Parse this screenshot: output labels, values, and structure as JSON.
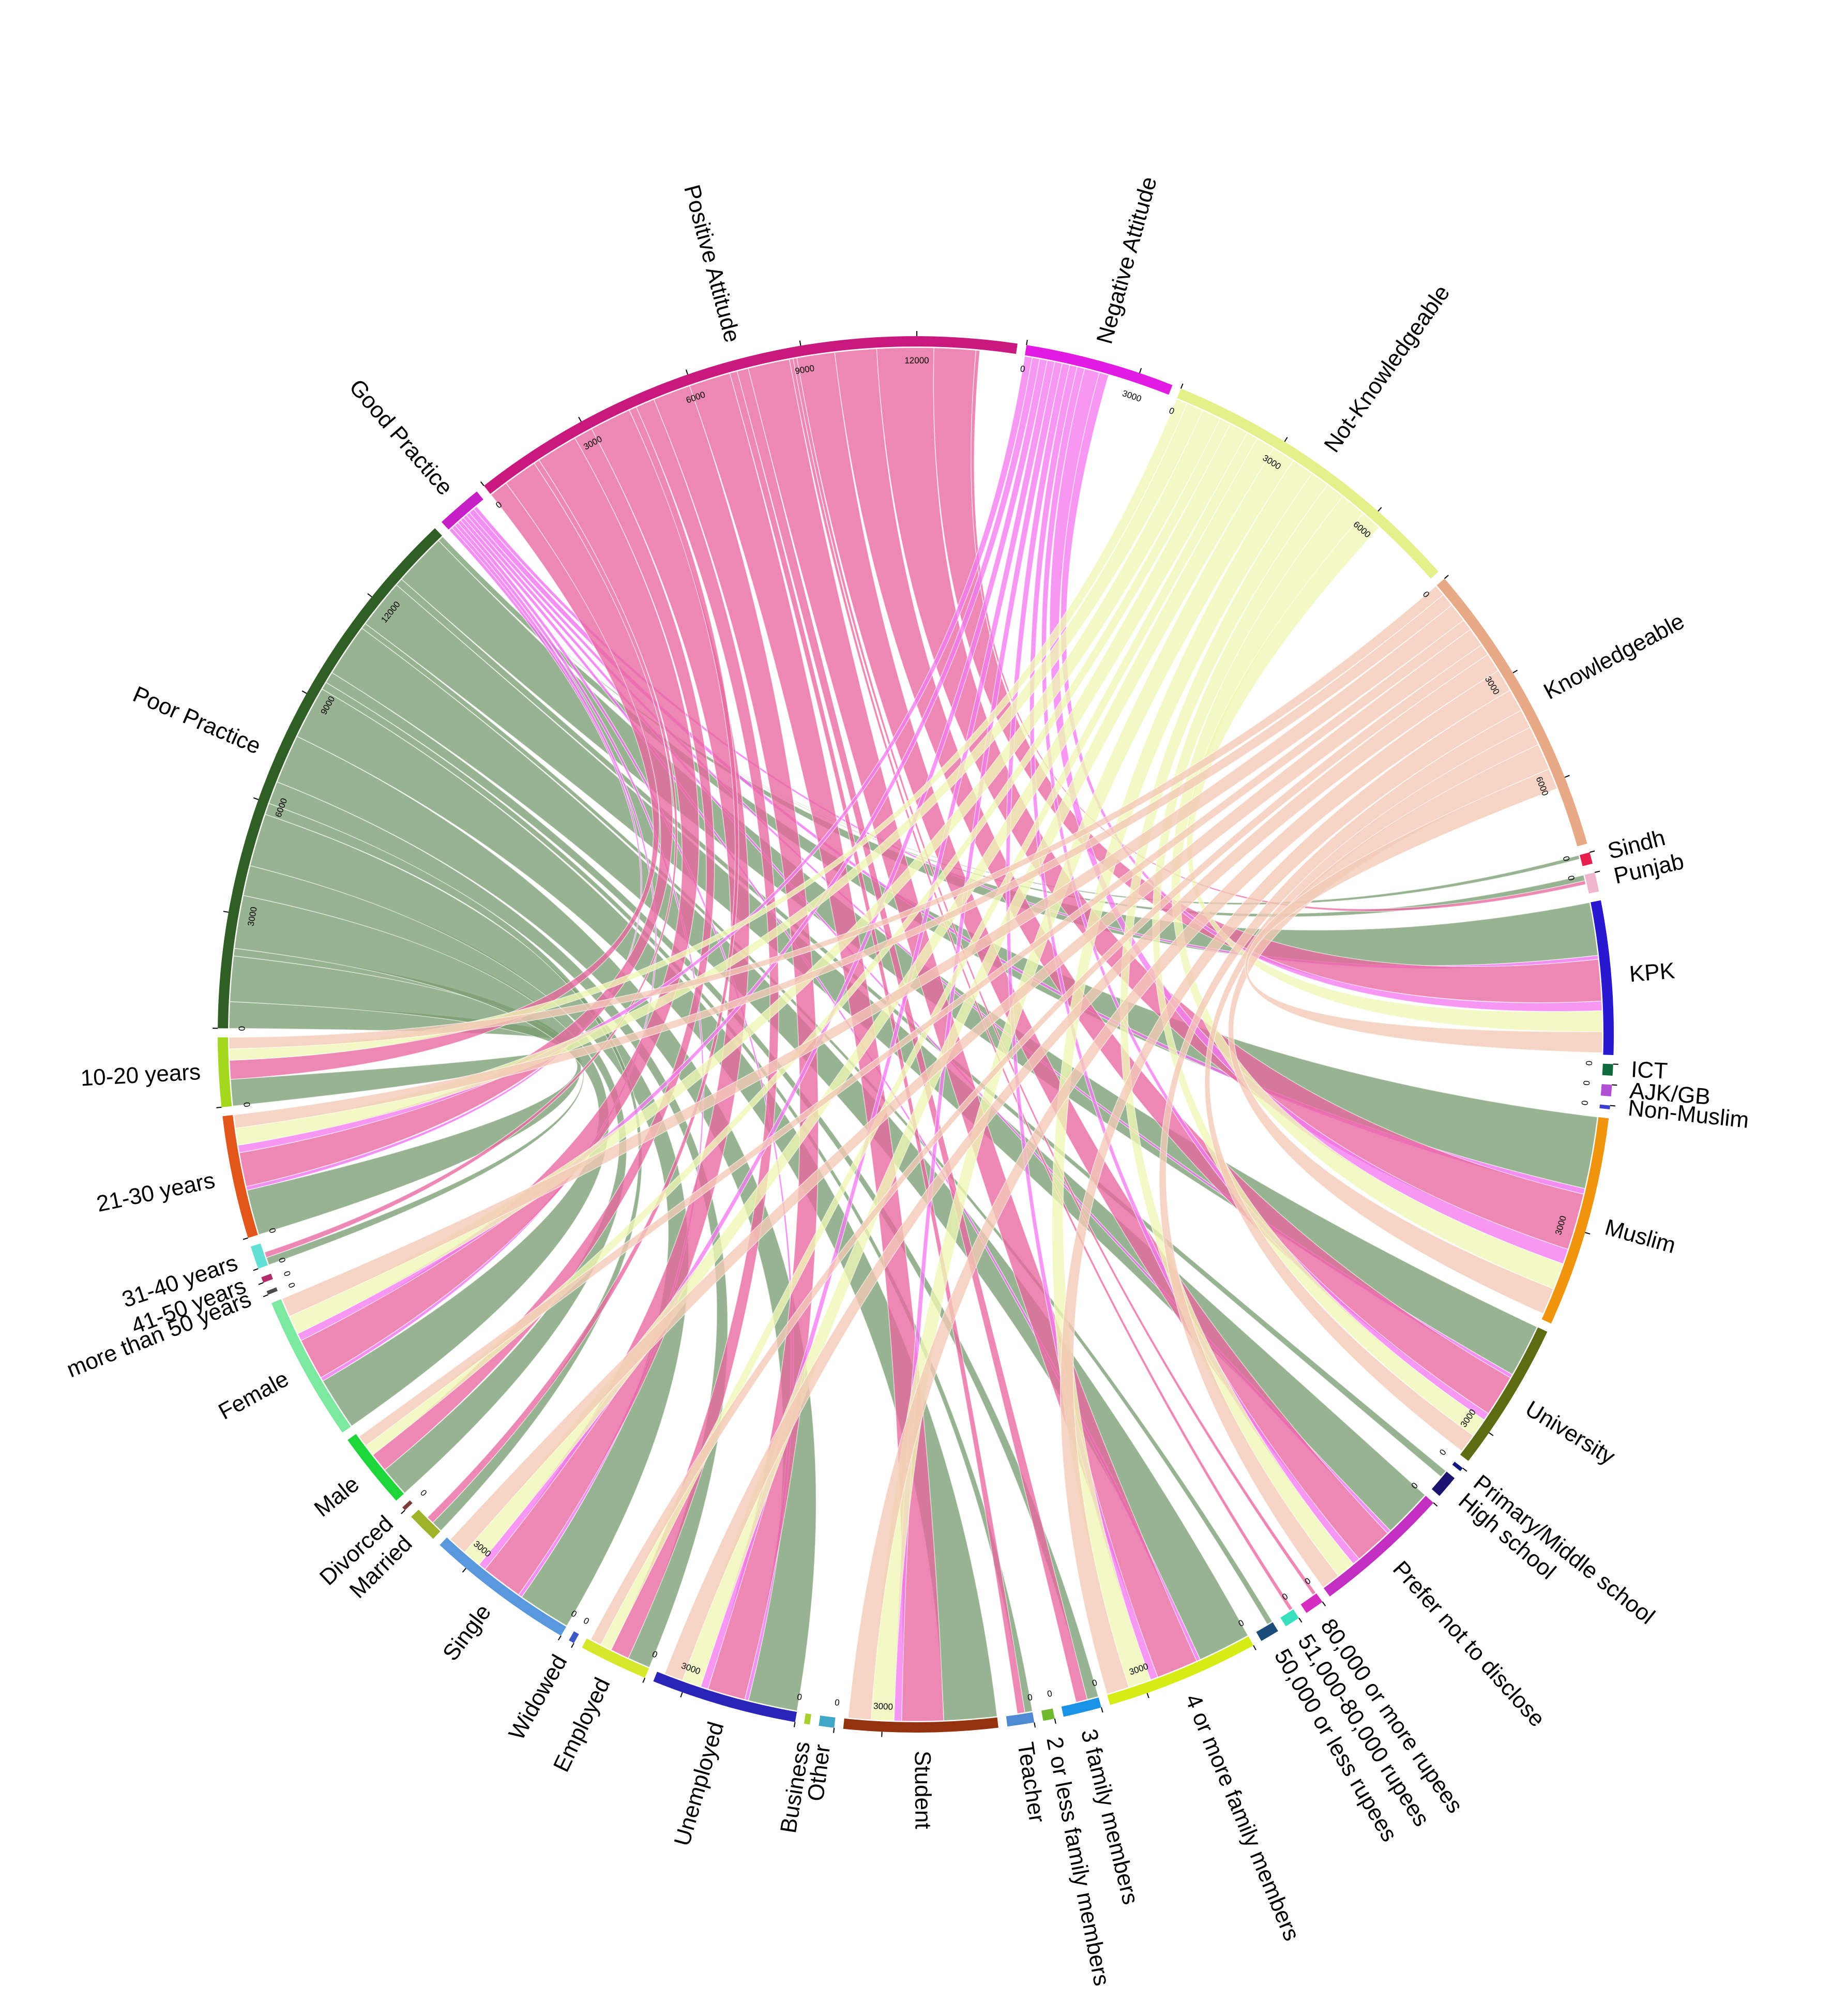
{
  "chart_data": {
    "type": "chord",
    "segments": [
      {
        "id": "poor-practice",
        "label": "Poor Practice",
        "color": "#2f5f24",
        "value": 14400,
        "ticks": [
          0,
          3000,
          6000,
          9000,
          12000
        ]
      },
      {
        "id": "good-practice",
        "label": "Good Practice",
        "color": "#c61fc6",
        "value": 1200,
        "ticks": []
      },
      {
        "id": "positive-attitude",
        "label": "Positive Attitude",
        "color": "#c9197f",
        "value": 14600,
        "ticks": [
          0,
          3000,
          6000,
          9000,
          12000
        ]
      },
      {
        "id": "negative-attitude",
        "label": "Negative Attitude",
        "color": "#e21be3",
        "value": 3900,
        "ticks": [
          0,
          3000
        ]
      },
      {
        "id": "not-knowledgeable",
        "label": "Not-Knowledgeable",
        "color": "#e6f08a",
        "value": 8200,
        "ticks": [
          0,
          3000,
          6000
        ]
      },
      {
        "id": "knowledgeable",
        "label": "Knowledgeable",
        "color": "#e8aa86",
        "value": 7800,
        "ticks": [
          0,
          3000,
          6000
        ]
      },
      {
        "id": "sindh",
        "label": "Sindh",
        "color": "#e8204f",
        "value": 300,
        "ticks": [
          0
        ]
      },
      {
        "id": "punjab",
        "label": "Punjab",
        "color": "#f0b6cd",
        "value": 500,
        "ticks": [
          0
        ]
      },
      {
        "id": "kpk",
        "label": "KPK",
        "color": "#2a17d0",
        "value": 4000,
        "ticks": []
      },
      {
        "id": "ict",
        "label": "ICT",
        "color": "#0f6a3e",
        "value": 300,
        "ticks": [
          0
        ]
      },
      {
        "id": "ajk-gb",
        "label": "AJK/GB",
        "color": "#b14fd6",
        "value": 300,
        "ticks": [
          0
        ]
      },
      {
        "id": "non-muslim",
        "label": "Non-Muslim",
        "color": "#3a3fd0",
        "value": 100,
        "ticks": [
          0
        ]
      },
      {
        "id": "muslim",
        "label": "Muslim",
        "color": "#f0940e",
        "value": 5500,
        "ticks": [
          3000
        ]
      },
      {
        "id": "university",
        "label": "University",
        "color": "#5d6b12",
        "value": 3900,
        "ticks": [
          3000
        ]
      },
      {
        "id": "primary-middle-school",
        "label": "Primary/Middle school",
        "color": "#0f1680",
        "value": 100,
        "ticks": [
          0
        ]
      },
      {
        "id": "high-school",
        "label": "High school",
        "color": "#1a1470",
        "value": 600,
        "ticks": []
      },
      {
        "id": "prefer-not-to-disclose",
        "label": "Prefer not to disclose",
        "color": "#c32fc0",
        "value": 3600,
        "ticks": [
          0
        ]
      },
      {
        "id": "80000-or-more-rupees",
        "label": "80,000 or more rupees",
        "color": "#d42cc0",
        "value": 500,
        "ticks": [
          0
        ]
      },
      {
        "id": "51000-80000-rupees",
        "label": "51,000-80,000 rupees",
        "color": "#39e0c0",
        "value": 400,
        "ticks": [
          0
        ]
      },
      {
        "id": "50000-or-less-rupees",
        "label": "50,000 or less rupees",
        "color": "#1d4b7a",
        "value": 500,
        "ticks": []
      },
      {
        "id": "4-or-more-family-members",
        "label": "4 or more family members",
        "color": "#d7eb14",
        "value": 4000,
        "ticks": [
          0,
          3000
        ]
      },
      {
        "id": "3-family-members",
        "label": "3 family members",
        "color": "#1a92e6",
        "value": 1000,
        "ticks": [
          0
        ]
      },
      {
        "id": "2-or-less-family-members",
        "label": "2 or less family members",
        "color": "#6fba2c",
        "value": 300,
        "ticks": [
          0
        ]
      },
      {
        "id": "teacher",
        "label": "Teacher",
        "color": "#4f8bd4",
        "value": 700,
        "ticks": [
          0
        ]
      },
      {
        "id": "student",
        "label": "Student",
        "color": "#94310f",
        "value": 4000,
        "ticks": [
          3000
        ]
      },
      {
        "id": "other",
        "label": "Other",
        "color": "#3fa7c7",
        "value": 400,
        "ticks": [
          0
        ]
      },
      {
        "id": "business",
        "label": "Business",
        "color": "#a7d12a",
        "value": 150,
        "ticks": []
      },
      {
        "id": "unemployed",
        "label": "Unemployed",
        "color": "#2a24b8",
        "value": 3800,
        "ticks": [
          0,
          3000
        ]
      },
      {
        "id": "employed",
        "label": "Employed",
        "color": "#d6e82b",
        "value": 1800,
        "ticks": [
          0
        ]
      },
      {
        "id": "widowed",
        "label": "Widowed",
        "color": "#3d59c2",
        "value": 150,
        "ticks": [
          0
        ]
      },
      {
        "id": "single",
        "label": "Single",
        "color": "#5a98dd",
        "value": 3900,
        "ticks": [
          0,
          3000
        ]
      },
      {
        "id": "married",
        "label": "Married",
        "color": "#9fb32a",
        "value": 800,
        "ticks": []
      },
      {
        "id": "divorced",
        "label": "Divorced",
        "color": "#7a3a3a",
        "value": 100,
        "ticks": [
          0
        ]
      },
      {
        "id": "male",
        "label": "Male",
        "color": "#1ed63a",
        "value": 2000,
        "ticks": []
      },
      {
        "id": "female",
        "label": "Female",
        "color": "#7de8a0",
        "value": 3800,
        "ticks": []
      },
      {
        "id": "more-than-50-years",
        "label": "more than 50 years",
        "color": "#4c4c4c",
        "value": 100,
        "ticks": [
          0
        ]
      },
      {
        "id": "41-50-years",
        "label": "41-50 years",
        "color": "#b02c6b",
        "value": 150,
        "ticks": [
          0
        ]
      },
      {
        "id": "31-40-years",
        "label": "31-40 years",
        "color": "#63e0d6",
        "value": 600,
        "ticks": [
          0
        ]
      },
      {
        "id": "21-30-years",
        "label": "21-30 years",
        "color": "#e2561c",
        "value": 3200,
        "ticks": [
          0
        ]
      },
      {
        "id": "10-20-years",
        "label": "10-20 years",
        "color": "#a3d81c",
        "value": 1800,
        "ticks": [
          0
        ]
      }
    ],
    "ribbon_colors": {
      "poor-practice": "#7b9d72",
      "good-practice": "#f06ef0",
      "positive-attitude": "#e8669f",
      "negative-attitude": "#f27af0",
      "not-knowledgeable": "#f0f7b4",
      "knowledgeable": "#f3c9b6"
    },
    "flows": [
      {
        "from": "poor-practice",
        "to": "10-20-years",
        "value": 700
      },
      {
        "from": "poor-practice",
        "to": "21-30-years",
        "value": 1200
      },
      {
        "from": "poor-practice",
        "to": "31-40-years",
        "value": 200
      },
      {
        "from": "poor-practice",
        "to": "female",
        "value": 1400
      },
      {
        "from": "poor-practice",
        "to": "male",
        "value": 800
      },
      {
        "from": "poor-practice",
        "to": "single",
        "value": 1400
      },
      {
        "from": "poor-practice",
        "to": "married",
        "value": 300
      },
      {
        "from": "poor-practice",
        "to": "employed",
        "value": 600
      },
      {
        "from": "poor-practice",
        "to": "unemployed",
        "value": 1300
      },
      {
        "from": "poor-practice",
        "to": "student",
        "value": 1400
      },
      {
        "from": "poor-practice",
        "to": "teacher",
        "value": 200
      },
      {
        "from": "poor-practice",
        "to": "3-family-members",
        "value": 300
      },
      {
        "from": "poor-practice",
        "to": "4-or-more-family-members",
        "value": 1400
      },
      {
        "from": "poor-practice",
        "to": "50000-or-less-rupees",
        "value": 150
      },
      {
        "from": "poor-practice",
        "to": "prefer-not-to-disclose",
        "value": 1300
      },
      {
        "from": "poor-practice",
        "to": "high-school",
        "value": 200
      },
      {
        "from": "poor-practice",
        "to": "university",
        "value": 1400
      },
      {
        "from": "poor-practice",
        "to": "muslim",
        "value": 1900
      },
      {
        "from": "poor-practice",
        "to": "kpk",
        "value": 1400
      },
      {
        "from": "poor-practice",
        "to": "punjab",
        "value": 150
      },
      {
        "from": "poor-practice",
        "to": "sindh",
        "value": 100
      },
      {
        "from": "good-practice",
        "to": "21-30-years",
        "value": 100
      },
      {
        "from": "good-practice",
        "to": "female",
        "value": 100
      },
      {
        "from": "good-practice",
        "to": "single",
        "value": 100
      },
      {
        "from": "good-practice",
        "to": "unemployed",
        "value": 100
      },
      {
        "from": "good-practice",
        "to": "4-or-more-family-members",
        "value": 100
      },
      {
        "from": "good-practice",
        "to": "prefer-not-to-disclose",
        "value": 100
      },
      {
        "from": "good-practice",
        "to": "university",
        "value": 100
      },
      {
        "from": "good-practice",
        "to": "muslim",
        "value": 150
      },
      {
        "from": "good-practice",
        "to": "kpk",
        "value": 100
      },
      {
        "from": "positive-attitude",
        "to": "10-20-years",
        "value": 500
      },
      {
        "from": "positive-attitude",
        "to": "21-30-years",
        "value": 900
      },
      {
        "from": "positive-attitude",
        "to": "31-40-years",
        "value": 150
      },
      {
        "from": "positive-attitude",
        "to": "female",
        "value": 1100
      },
      {
        "from": "positive-attitude",
        "to": "male",
        "value": 500
      },
      {
        "from": "positive-attitude",
        "to": "single",
        "value": 1100
      },
      {
        "from": "positive-attitude",
        "to": "married",
        "value": 200
      },
      {
        "from": "positive-attitude",
        "to": "employed",
        "value": 500
      },
      {
        "from": "positive-attitude",
        "to": "unemployed",
        "value": 1000
      },
      {
        "from": "positive-attitude",
        "to": "student",
        "value": 1100
      },
      {
        "from": "positive-attitude",
        "to": "teacher",
        "value": 200
      },
      {
        "from": "positive-attitude",
        "to": "3-family-members",
        "value": 300
      },
      {
        "from": "positive-attitude",
        "to": "4-or-more-family-members",
        "value": 1100
      },
      {
        "from": "positive-attitude",
        "to": "51000-80000-rupees",
        "value": 100
      },
      {
        "from": "positive-attitude",
        "to": "80000-or-more-rupees",
        "value": 100
      },
      {
        "from": "positive-attitude",
        "to": "prefer-not-to-disclose",
        "value": 1000
      },
      {
        "from": "positive-attitude",
        "to": "university",
        "value": 1100
      },
      {
        "from": "positive-attitude",
        "to": "muslim",
        "value": 1500
      },
      {
        "from": "positive-attitude",
        "to": "kpk",
        "value": 1100
      },
      {
        "from": "positive-attitude",
        "to": "punjab",
        "value": 100
      },
      {
        "from": "negative-attitude",
        "to": "21-30-years",
        "value": 200
      },
      {
        "from": "negative-attitude",
        "to": "female",
        "value": 200
      },
      {
        "from": "negative-attitude",
        "to": "single",
        "value": 200
      },
      {
        "from": "negative-attitude",
        "to": "unemployed",
        "value": 200
      },
      {
        "from": "negative-attitude",
        "to": "student",
        "value": 200
      },
      {
        "from": "negative-attitude",
        "to": "4-or-more-family-members",
        "value": 200
      },
      {
        "from": "negative-attitude",
        "to": "prefer-not-to-disclose",
        "value": 200
      },
      {
        "from": "negative-attitude",
        "to": "university",
        "value": 200
      },
      {
        "from": "negative-attitude",
        "to": "muslim",
        "value": 400
      },
      {
        "from": "negative-attitude",
        "to": "kpk",
        "value": 250
      },
      {
        "from": "not-knowledgeable",
        "to": "10-20-years",
        "value": 300
      },
      {
        "from": "not-knowledgeable",
        "to": "21-30-years",
        "value": 450
      },
      {
        "from": "not-knowledgeable",
        "to": "female",
        "value": 500
      },
      {
        "from": "not-knowledgeable",
        "to": "male",
        "value": 300
      },
      {
        "from": "not-knowledgeable",
        "to": "single",
        "value": 500
      },
      {
        "from": "not-knowledgeable",
        "to": "employed",
        "value": 300
      },
      {
        "from": "not-knowledgeable",
        "to": "unemployed",
        "value": 500
      },
      {
        "from": "not-knowledgeable",
        "to": "student",
        "value": 600
      },
      {
        "from": "not-knowledgeable",
        "to": "4-or-more-family-members",
        "value": 600
      },
      {
        "from": "not-knowledgeable",
        "to": "prefer-not-to-disclose",
        "value": 500
      },
      {
        "from": "not-knowledgeable",
        "to": "university",
        "value": 500
      },
      {
        "from": "not-knowledgeable",
        "to": "muslim",
        "value": 700
      },
      {
        "from": "not-knowledgeable",
        "to": "kpk",
        "value": 550
      },
      {
        "from": "knowledgeable",
        "to": "10-20-years",
        "value": 300
      },
      {
        "from": "knowledgeable",
        "to": "21-30-years",
        "value": 350
      },
      {
        "from": "knowledgeable",
        "to": "female",
        "value": 500
      },
      {
        "from": "knowledgeable",
        "to": "male",
        "value": 300
      },
      {
        "from": "knowledgeable",
        "to": "single",
        "value": 500
      },
      {
        "from": "knowledgeable",
        "to": "employed",
        "value": 300
      },
      {
        "from": "knowledgeable",
        "to": "unemployed",
        "value": 500
      },
      {
        "from": "knowledgeable",
        "to": "student",
        "value": 600
      },
      {
        "from": "knowledgeable",
        "to": "4-or-more-family-members",
        "value": 600
      },
      {
        "from": "knowledgeable",
        "to": "prefer-not-to-disclose",
        "value": 500
      },
      {
        "from": "knowledgeable",
        "to": "university",
        "value": 500
      },
      {
        "from": "knowledgeable",
        "to": "muslim",
        "value": 700
      },
      {
        "from": "knowledgeable",
        "to": "kpk",
        "value": 550
      }
    ]
  }
}
